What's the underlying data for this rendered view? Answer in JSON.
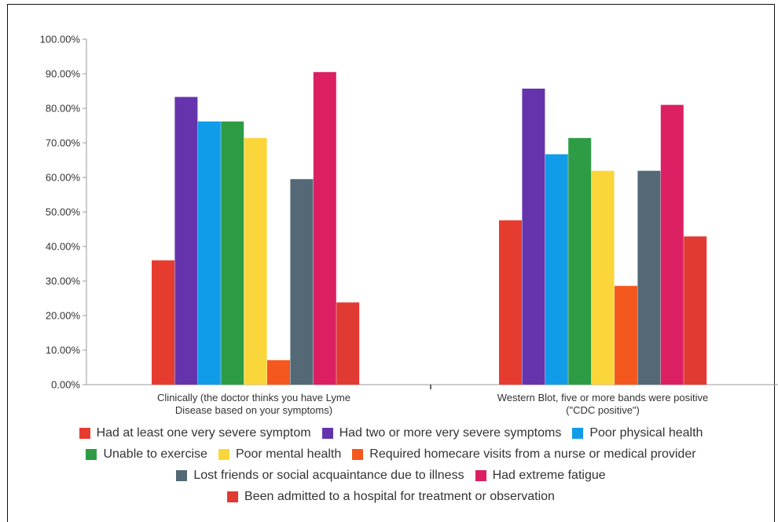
{
  "chart_data": {
    "type": "bar",
    "categories": [
      "Clinically (the doctor thinks you have Lyme Disease based on your symptoms)",
      "Western Blot, five or more bands were positive (\"CDC positive\")"
    ],
    "category_label_lines": [
      [
        "Clinically (the doctor thinks you have Lyme",
        "Disease based on your symptoms)"
      ],
      [
        "Western Blot, five or more bands were positive",
        "(\"CDC positive\")"
      ]
    ],
    "series": [
      {
        "name": "Had at least one very severe symptom",
        "color": "#e63c2f",
        "values": [
          36.0,
          47.6
        ]
      },
      {
        "name": "Had two or more very severe symptoms",
        "color": "#6534ad",
        "values": [
          83.3,
          85.7
        ]
      },
      {
        "name": "Poor physical health",
        "color": "#109ce8",
        "values": [
          76.2,
          66.7
        ]
      },
      {
        "name": "Unable to exercise",
        "color": "#2d9c45",
        "values": [
          76.2,
          71.4
        ]
      },
      {
        "name": "Poor mental health",
        "color": "#fbd63a",
        "values": [
          71.4,
          61.9
        ]
      },
      {
        "name": "Required homecare visits from a nurse or medical provider",
        "color": "#f4581f",
        "values": [
          7.1,
          28.6
        ]
      },
      {
        "name": "Lost friends or social acquaintance due to illness",
        "color": "#546975",
        "values": [
          59.5,
          61.9
        ]
      },
      {
        "name": "Had extreme fatigue",
        "color": "#dc1f62",
        "values": [
          90.5,
          81.0
        ]
      },
      {
        "name": "Been admitted to a hospital for treatment or observation",
        "color": "#e03a33",
        "values": [
          23.8,
          42.9
        ]
      }
    ],
    "ylim": [
      0,
      100
    ],
    "yticks": [
      "0.00%",
      "10.00%",
      "20.00%",
      "30.00%",
      "40.00%",
      "50.00%",
      "60.00%",
      "70.00%",
      "80.00%",
      "90.00%",
      "100.00%"
    ],
    "grid": false,
    "legend_position": "bottom",
    "legend_rows": [
      [
        0,
        1,
        2
      ],
      [
        3,
        4,
        5
      ],
      [
        6,
        7
      ],
      [
        8
      ]
    ]
  }
}
